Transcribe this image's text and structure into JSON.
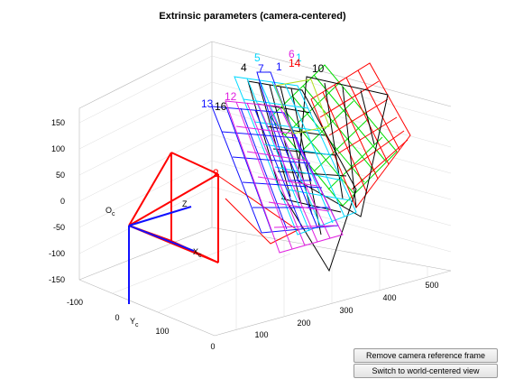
{
  "figure": {
    "title": "Extrinsic parameters (camera-centered)"
  },
  "axes": {
    "z_ticks": [
      "150",
      "100",
      "50",
      "0",
      "-50",
      "-100",
      "-150"
    ],
    "x_ticks": [
      "-100",
      "0",
      "100"
    ],
    "y_ticks": [
      "0",
      "100",
      "200",
      "300",
      "400",
      "500"
    ]
  },
  "camera_frame": {
    "origin_main": "O",
    "origin_sub": "c",
    "x_main": "X",
    "x_sub": "c",
    "y_main": "Y",
    "y_sub": "c",
    "z_label": "Z"
  },
  "grid_labels": [
    {
      "text": "4",
      "color": "#000000"
    },
    {
      "text": "5",
      "color": "#00d8ff"
    },
    {
      "text": "7",
      "color": "#1010ff"
    },
    {
      "text": "1",
      "color": "#1010ff"
    },
    {
      "text": "6",
      "color": "#e020e0"
    },
    {
      "text": "1",
      "color": "#00d8ff"
    },
    {
      "text": "14",
      "color": "#ff0000"
    },
    {
      "text": "10",
      "color": "#000000"
    },
    {
      "text": "13",
      "color": "#1010ff"
    },
    {
      "text": "16",
      "color": "#000000"
    },
    {
      "text": "12",
      "color": "#e020e0"
    },
    {
      "text": "2",
      "color": "#ff0000"
    }
  ],
  "buttons": {
    "remove_camera": "Remove camera reference frame",
    "switch_view": "Switch to world-centered view"
  },
  "colors": {
    "blue": "#1010ff",
    "magenta": "#e020e0",
    "black": "#000000",
    "cyan": "#00d8ff",
    "green": "#00dd00",
    "red": "#ff0000"
  }
}
